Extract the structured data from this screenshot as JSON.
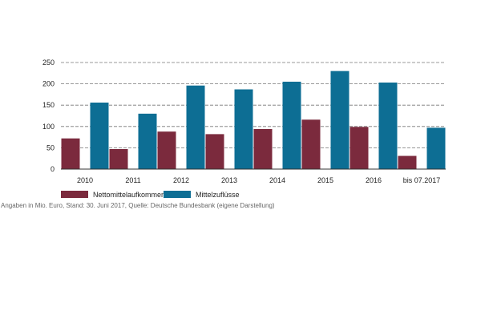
{
  "chart_data": {
    "type": "bar",
    "categories": [
      "2010",
      "2011",
      "2012",
      "2013",
      "2014",
      "2015",
      "2016",
      "bis 07.2017"
    ],
    "series": [
      {
        "name": "Nettomittelaufkommen",
        "color": "#7b2a3d",
        "values": [
          72,
          47,
          88,
          82,
          94,
          116,
          99,
          31
        ]
      },
      {
        "name": "Mittelzuflüsse",
        "color": "#0d6e94",
        "values": [
          156,
          130,
          196,
          187,
          205,
          230,
          203,
          97
        ]
      }
    ],
    "ylim": [
      0,
      250
    ],
    "yticks": [
      "0",
      "50",
      "100",
      "150",
      "200",
      "250"
    ],
    "grid": true,
    "legend_position": "bottom-left"
  },
  "source_note": "Angaben in Mio. Euro, Stand: 30. Juni 2017, Quelle: Deutsche Bundesbank (eigene Darstellung)"
}
